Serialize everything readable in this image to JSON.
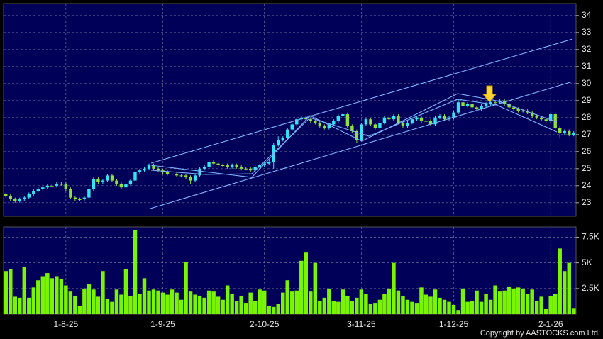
{
  "chart_data": [
    {
      "type": "candlestick",
      "open": [
        23.5,
        23.4,
        23.2,
        23.1,
        23.2,
        23.3,
        23.5,
        23.7,
        23.8,
        23.9,
        24.0,
        24.0,
        24.1,
        24.1,
        23.8,
        23.3,
        23.2,
        23.2,
        23.3,
        23.8,
        24.4,
        24.2,
        24.3,
        24.6,
        24.3,
        24.1,
        23.9,
        24.1,
        24.3,
        24.8,
        24.9,
        25.0,
        25.2,
        25.0,
        24.9,
        24.8,
        24.7,
        24.7,
        24.6,
        24.6,
        24.5,
        24.3,
        24.6,
        25.0,
        25.1,
        25.4,
        25.3,
        25.2,
        25.2,
        25.1,
        25.2,
        25.1,
        25.0,
        25.0,
        24.9,
        25.1,
        25.2,
        25.3,
        25.4,
        26.4,
        26.7,
        26.8,
        27.3,
        27.6,
        27.9,
        28.0,
        27.9,
        27.8,
        27.7,
        27.5,
        27.4,
        27.6,
        27.8,
        28.1,
        28.2,
        27.5,
        27.2,
        26.7,
        27.6,
        27.9,
        27.6,
        27.4,
        27.7,
        28.0,
        27.9,
        28.1,
        27.7,
        27.5,
        27.7,
        27.9,
        28.0,
        27.8,
        27.8,
        27.6,
        28.0,
        28.1,
        27.9,
        28.0,
        28.3,
        28.9,
        28.7,
        28.8,
        28.6,
        28.5,
        28.7,
        28.8,
        28.9,
        28.9,
        29.0,
        28.8,
        28.6,
        28.5,
        28.4,
        28.4,
        28.3,
        28.1,
        28.0,
        27.9,
        27.8,
        28.2,
        27.4,
        27.1,
        27.2,
        27.0
      ],
      "high": [
        23.6,
        23.5,
        23.3,
        23.3,
        23.4,
        23.6,
        23.8,
        23.9,
        24.0,
        24.1,
        24.1,
        24.2,
        24.2,
        24.2,
        23.9,
        23.4,
        23.3,
        23.4,
        23.9,
        24.5,
        24.5,
        24.4,
        24.7,
        24.7,
        24.4,
        24.2,
        24.2,
        24.4,
        24.9,
        25.0,
        25.1,
        25.3,
        25.3,
        25.1,
        25.0,
        24.9,
        24.8,
        24.8,
        24.7,
        24.7,
        24.6,
        24.7,
        25.1,
        25.2,
        25.5,
        25.5,
        25.4,
        25.3,
        25.3,
        25.3,
        25.3,
        25.2,
        25.1,
        25.1,
        25.2,
        25.3,
        25.4,
        25.5,
        26.5,
        26.9,
        26.9,
        27.4,
        27.7,
        28.0,
        28.1,
        28.1,
        28.0,
        27.9,
        27.8,
        27.6,
        27.7,
        27.9,
        28.2,
        28.3,
        28.3,
        27.6,
        27.3,
        27.7,
        28.0,
        28.0,
        27.7,
        27.8,
        28.1,
        28.1,
        28.2,
        28.2,
        27.8,
        27.8,
        28.0,
        28.1,
        28.1,
        27.9,
        27.9,
        28.1,
        28.2,
        28.2,
        28.1,
        28.4,
        29.1,
        29.0,
        28.9,
        28.9,
        28.7,
        28.8,
        28.9,
        29.0,
        29.0,
        29.1,
        29.1,
        28.9,
        28.7,
        28.6,
        28.5,
        28.5,
        28.4,
        28.2,
        28.1,
        28.0,
        28.3,
        28.3,
        27.5,
        27.3,
        27.3,
        27.2
      ],
      "low": [
        23.3,
        23.1,
        23.0,
        23.0,
        23.1,
        23.2,
        23.4,
        23.6,
        23.7,
        23.8,
        23.9,
        23.9,
        24.0,
        23.7,
        23.2,
        23.1,
        23.1,
        23.1,
        23.2,
        23.7,
        24.1,
        24.1,
        24.2,
        24.2,
        24.0,
        23.8,
        23.8,
        24.0,
        24.2,
        24.7,
        24.8,
        24.9,
        24.9,
        24.8,
        24.7,
        24.6,
        24.6,
        24.5,
        24.5,
        24.4,
        24.1,
        24.2,
        24.5,
        24.9,
        25.0,
        25.2,
        25.1,
        25.1,
        25.0,
        25.0,
        25.0,
        24.9,
        24.9,
        24.8,
        24.8,
        25.0,
        25.1,
        25.2,
        25.0,
        26.3,
        26.6,
        26.7,
        27.2,
        27.5,
        27.8,
        27.8,
        27.7,
        27.6,
        27.4,
        27.3,
        27.3,
        27.5,
        27.7,
        28.0,
        27.4,
        27.1,
        26.5,
        26.6,
        27.5,
        27.5,
        27.3,
        27.3,
        27.6,
        27.8,
        27.8,
        27.6,
        27.4,
        27.4,
        27.6,
        27.8,
        27.7,
        27.7,
        27.5,
        27.5,
        27.9,
        27.8,
        27.8,
        27.9,
        28.2,
        28.6,
        28.6,
        28.5,
        28.4,
        28.4,
        28.6,
        28.7,
        28.8,
        28.8,
        28.7,
        28.5,
        28.4,
        28.3,
        28.3,
        28.2,
        28.0,
        27.9,
        27.8,
        27.7,
        27.7,
        27.3,
        26.8,
        27.0,
        26.9,
        26.9
      ],
      "close": [
        23.4,
        23.2,
        23.1,
        23.2,
        23.3,
        23.5,
        23.7,
        23.8,
        23.9,
        24.0,
        24.0,
        24.1,
        24.1,
        23.8,
        23.3,
        23.2,
        23.2,
        23.3,
        23.8,
        24.4,
        24.2,
        24.3,
        24.6,
        24.3,
        24.1,
        23.9,
        24.1,
        24.3,
        24.8,
        24.9,
        25.0,
        25.2,
        25.0,
        24.9,
        24.8,
        24.7,
        24.7,
        24.6,
        24.6,
        24.5,
        24.3,
        24.6,
        25.0,
        25.1,
        25.4,
        25.3,
        25.2,
        25.2,
        25.1,
        25.2,
        25.1,
        25.0,
        25.0,
        24.9,
        25.1,
        25.2,
        25.3,
        25.4,
        26.4,
        26.7,
        26.8,
        27.3,
        27.6,
        27.9,
        28.0,
        27.9,
        27.8,
        27.7,
        27.5,
        27.4,
        27.6,
        27.8,
        28.1,
        28.2,
        27.5,
        27.2,
        26.7,
        27.6,
        27.9,
        27.6,
        27.4,
        27.7,
        28.0,
        27.9,
        28.1,
        27.7,
        27.5,
        27.7,
        27.9,
        28.0,
        27.8,
        27.8,
        27.6,
        28.0,
        28.1,
        27.9,
        28.0,
        28.3,
        28.9,
        28.7,
        28.8,
        28.6,
        28.5,
        28.7,
        28.8,
        28.9,
        28.9,
        29.0,
        28.8,
        28.6,
        28.5,
        28.4,
        28.4,
        28.3,
        28.1,
        28.0,
        27.9,
        27.8,
        28.2,
        27.4,
        27.1,
        27.2,
        27.0,
        27.1
      ],
      "up_color": "#33e4f4",
      "down_color": "#8ee03a",
      "ylim": [
        22.2,
        34.7
      ],
      "yticks": [
        23,
        24,
        25,
        26,
        27,
        28,
        29,
        30,
        31,
        32,
        33,
        34
      ],
      "grid": true
    },
    {
      "type": "bar",
      "categories": [
        null,
        null,
        null,
        null,
        null,
        null,
        null,
        null,
        null,
        null,
        null,
        null,
        null,
        "1-8-25",
        null,
        null,
        null,
        null,
        null,
        null,
        null,
        null,
        null,
        null,
        null,
        null,
        null,
        null,
        null,
        null,
        null,
        null,
        null,
        null,
        "1-9-25",
        null,
        null,
        null,
        null,
        null,
        null,
        null,
        null,
        null,
        null,
        null,
        null,
        null,
        null,
        null,
        null,
        null,
        null,
        null,
        null,
        null,
        "2-10-25",
        null,
        null,
        null,
        null,
        null,
        null,
        null,
        null,
        null,
        null,
        null,
        null,
        null,
        null,
        null,
        null,
        null,
        null,
        null,
        null,
        "3-11-25",
        null,
        null,
        null,
        null,
        null,
        null,
        null,
        null,
        null,
        null,
        null,
        null,
        null,
        null,
        null,
        null,
        null,
        null,
        null,
        "1-12-25",
        null,
        null,
        null,
        null,
        null,
        null,
        null,
        null,
        null,
        null,
        null,
        null,
        null,
        null,
        null,
        null,
        null,
        null,
        null,
        null,
        "2-1-26",
        null,
        null,
        null,
        null,
        null
      ],
      "values": [
        4200,
        4400,
        1700,
        1600,
        4600,
        1600,
        2600,
        3300,
        3700,
        4000,
        3500,
        3700,
        3400,
        2800,
        2200,
        1800,
        800,
        2500,
        2900,
        2400,
        1700,
        4200,
        1500,
        1200,
        2400,
        1900,
        4400,
        1800,
        8200,
        2000,
        3500,
        2300,
        2400,
        2300,
        2100,
        1900,
        2400,
        2100,
        1400,
        5100,
        2200,
        1900,
        1800,
        1600,
        2300,
        2200,
        1700,
        1400,
        2800,
        2000,
        1300,
        1800,
        1100,
        2100,
        1300,
        2400,
        2300,
        800,
        700,
        1000,
        2100,
        3300,
        2200,
        2300,
        5200,
        6000,
        2200,
        5000,
        1300,
        1600,
        2500,
        1300,
        1200,
        2400,
        1800,
        1300,
        1600,
        2400,
        2000,
        1000,
        1100,
        1400,
        2000,
        2500,
        5000,
        2300,
        1800,
        1400,
        1200,
        1100,
        2600,
        1900,
        1700,
        2400,
        1600,
        1400,
        1200,
        900,
        400,
        2500,
        1200,
        1300,
        2300,
        1200,
        2000,
        1400,
        2800,
        2200,
        2300,
        2700,
        2500,
        2600,
        2500,
        2000,
        2400,
        1300,
        1700,
        500,
        1800,
        2000,
        6400,
        4200,
        5000,
        600
      ],
      "color": "#7af500",
      "ylim": [
        0,
        8500
      ],
      "yticks": [
        {
          "value": 2500,
          "label": "2.5K"
        },
        {
          "value": 5000,
          "label": "5K"
        },
        {
          "value": 7500,
          "label": "7.5K"
        }
      ],
      "grid": true
    }
  ],
  "copyright": "Copyright by AASTOCKS.com Ltd."
}
